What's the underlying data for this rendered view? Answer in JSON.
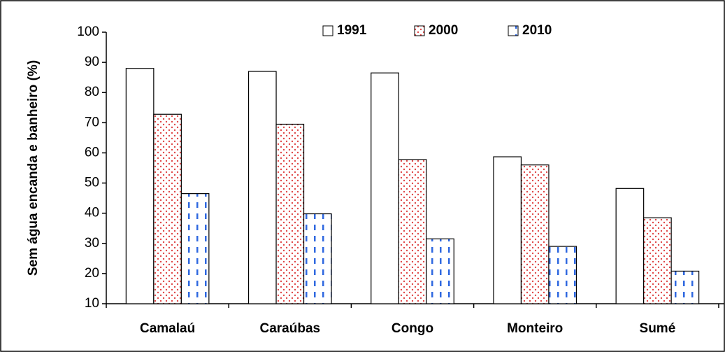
{
  "chart_data": {
    "type": "bar",
    "y_label": "Sem água encanda e banheiro (%)",
    "categories": [
      "Camalaú",
      "Caraúbas",
      "Congo",
      "Monteiro",
      "Sumé"
    ],
    "series": [
      {
        "name": "1991",
        "color": "#ffffff",
        "pattern": "none",
        "values": [
          88,
          87,
          86.5,
          58.7,
          48.2
        ]
      },
      {
        "name": "2000",
        "color": "#e04848",
        "pattern": "dots",
        "values": [
          72.8,
          69.5,
          57.8,
          56,
          38.5
        ]
      },
      {
        "name": "2010",
        "color": "#2f68e0",
        "pattern": "dashes",
        "values": [
          46.5,
          39.8,
          31.5,
          29,
          20.8
        ]
      }
    ],
    "ylim": [
      10,
      100
    ],
    "yticks": [
      10,
      20,
      30,
      40,
      50,
      60,
      70,
      80,
      90,
      100
    ],
    "legend": "top"
  }
}
